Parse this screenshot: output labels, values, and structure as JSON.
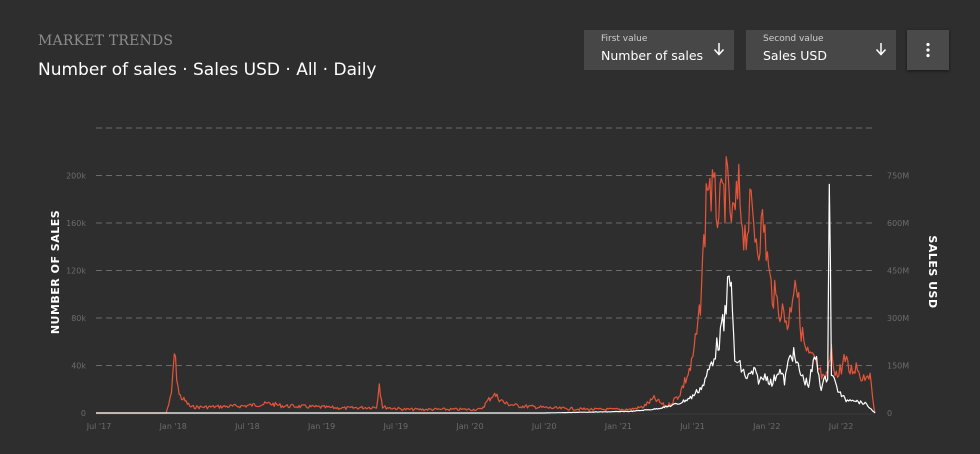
{
  "header": {
    "kicker": "MARKET TRENDS",
    "subtitle": "Number of sales · Sales USD · All · Daily"
  },
  "controls": {
    "first": {
      "label": "First value",
      "value": "Number of sales"
    },
    "second": {
      "label": "Second value",
      "value": "Sales USD"
    },
    "menu_icon": "more-vertical-icon",
    "dropdown_icon": "arrow-down-icon"
  },
  "colors": {
    "number_of_sales": "#e4553a",
    "sales_usd": "#ffffff",
    "background": "#2e2e2e"
  },
  "chart_data": {
    "type": "line",
    "ylabel": "NUMBER OF SALES",
    "y2label": "SALES USD",
    "grid": true,
    "x_ticks": [
      "Jul '17",
      "Jan '18",
      "Jul '18",
      "Jan '19",
      "Jul '19",
      "Jan '20",
      "Jul '20",
      "Jan '21",
      "Jul '21",
      "Jan '22",
      "Jul '22"
    ],
    "y_ticks": [
      "0",
      "40k",
      "80k",
      "120k",
      "160k",
      "200k"
    ],
    "y2_ticks": [
      "0",
      "150M",
      "300M",
      "450M",
      "600M",
      "750M"
    ],
    "ylim": [
      0,
      240000
    ],
    "y2lim": [
      0,
      900000000
    ],
    "xlim": [
      "2017-06-01",
      "2022-08-25"
    ],
    "series": [
      {
        "name": "Number of sales",
        "axis": "left",
        "x": [
          "2017-06-01",
          "2017-11-20",
          "2017-12-03",
          "2017-12-10",
          "2017-12-22",
          "2018-01-20",
          "2018-03-01",
          "2018-06-01",
          "2018-08-01",
          "2018-09-01",
          "2018-12-01",
          "2019-02-01",
          "2019-04-20",
          "2019-04-27",
          "2019-05-05",
          "2019-07-01",
          "2019-10-01",
          "2020-01-01",
          "2020-02-01",
          "2020-03-01",
          "2020-04-01",
          "2020-07-01",
          "2020-10-01",
          "2021-01-01",
          "2021-02-01",
          "2021-03-01",
          "2021-04-01",
          "2021-05-01",
          "2021-06-01",
          "2021-06-20",
          "2021-07-01",
          "2021-07-10",
          "2021-07-25",
          "2021-08-10",
          "2021-08-25",
          "2021-09-10",
          "2021-09-25",
          "2021-10-10",
          "2021-10-25",
          "2021-11-10",
          "2021-11-25",
          "2021-12-10",
          "2021-12-25",
          "2022-01-10",
          "2022-01-25",
          "2022-02-10",
          "2022-02-25",
          "2022-03-10",
          "2022-03-25",
          "2022-04-10",
          "2022-04-25",
          "2022-05-10",
          "2022-05-25",
          "2022-06-10",
          "2022-06-25",
          "2022-07-10",
          "2022-07-25",
          "2022-08-10",
          "2022-08-25"
        ],
        "values": [
          0,
          0,
          15000,
          50000,
          15000,
          5000,
          5000,
          6000,
          8000,
          6000,
          5000,
          4000,
          5000,
          25000,
          5000,
          3000,
          3000,
          3000,
          16000,
          8000,
          6000,
          4000,
          3000,
          3000,
          5000,
          12000,
          5000,
          15000,
          40000,
          80000,
          140000,
          200000,
          180000,
          170000,
          190000,
          160000,
          185000,
          150000,
          170000,
          145000,
          160000,
          110000,
          95000,
          85000,
          75000,
          120000,
          70000,
          50000,
          45000,
          35000,
          25000,
          50000,
          30000,
          45000,
          35000,
          40000,
          30000,
          35000,
          0
        ]
      },
      {
        "name": "Sales USD",
        "axis": "right",
        "x": [
          "2017-06-01",
          "2020-06-01",
          "2021-01-01",
          "2021-03-01",
          "2021-04-01",
          "2021-05-01",
          "2021-06-01",
          "2021-07-01",
          "2021-07-20",
          "2021-08-05",
          "2021-08-25",
          "2021-09-01",
          "2021-09-15",
          "2021-10-01",
          "2021-10-15",
          "2021-11-01",
          "2021-11-15",
          "2021-12-01",
          "2021-12-15",
          "2022-01-01",
          "2022-01-15",
          "2022-02-01",
          "2022-02-15",
          "2022-03-01",
          "2022-03-15",
          "2022-04-01",
          "2022-04-15",
          "2022-05-01",
          "2022-05-05",
          "2022-05-10",
          "2022-05-20",
          "2022-06-01",
          "2022-06-15",
          "2022-07-01",
          "2022-07-15",
          "2022-08-01",
          "2022-08-25"
        ],
        "values": [
          0,
          0,
          5000000,
          12000000,
          20000000,
          30000000,
          50000000,
          90000000,
          160000000,
          220000000,
          310000000,
          500000000,
          170000000,
          140000000,
          110000000,
          130000000,
          100000000,
          120000000,
          90000000,
          140000000,
          100000000,
          200000000,
          150000000,
          110000000,
          90000000,
          180000000,
          80000000,
          120000000,
          800000000,
          130000000,
          90000000,
          60000000,
          40000000,
          45000000,
          35000000,
          30000000,
          0
        ]
      }
    ]
  }
}
